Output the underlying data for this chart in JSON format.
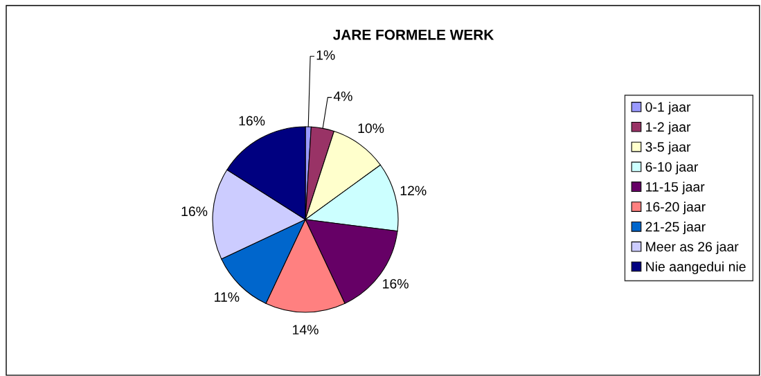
{
  "chart_data": {
    "type": "pie",
    "title": "JARE FORMELE WERK",
    "categories": [
      "0-1 jaar",
      "1-2 jaar",
      "3-5 jaar",
      "6-10 jaar",
      "11-15 jaar",
      "16-20 jaar",
      "21-25 jaar",
      "Meer as 26 jaar",
      "Nie aangedui nie"
    ],
    "values": [
      1,
      4,
      10,
      12,
      16,
      14,
      11,
      16,
      16
    ],
    "colors": [
      "#9999ff",
      "#993366",
      "#ffffcc",
      "#ccffff",
      "#660066",
      "#ff8080",
      "#0066cc",
      "#ccccff",
      "#000080"
    ],
    "value_labels": [
      "1%",
      "4%",
      "10%",
      "12%",
      "16%",
      "14%",
      "11%",
      "16%",
      "16%"
    ],
    "legend": "right"
  }
}
